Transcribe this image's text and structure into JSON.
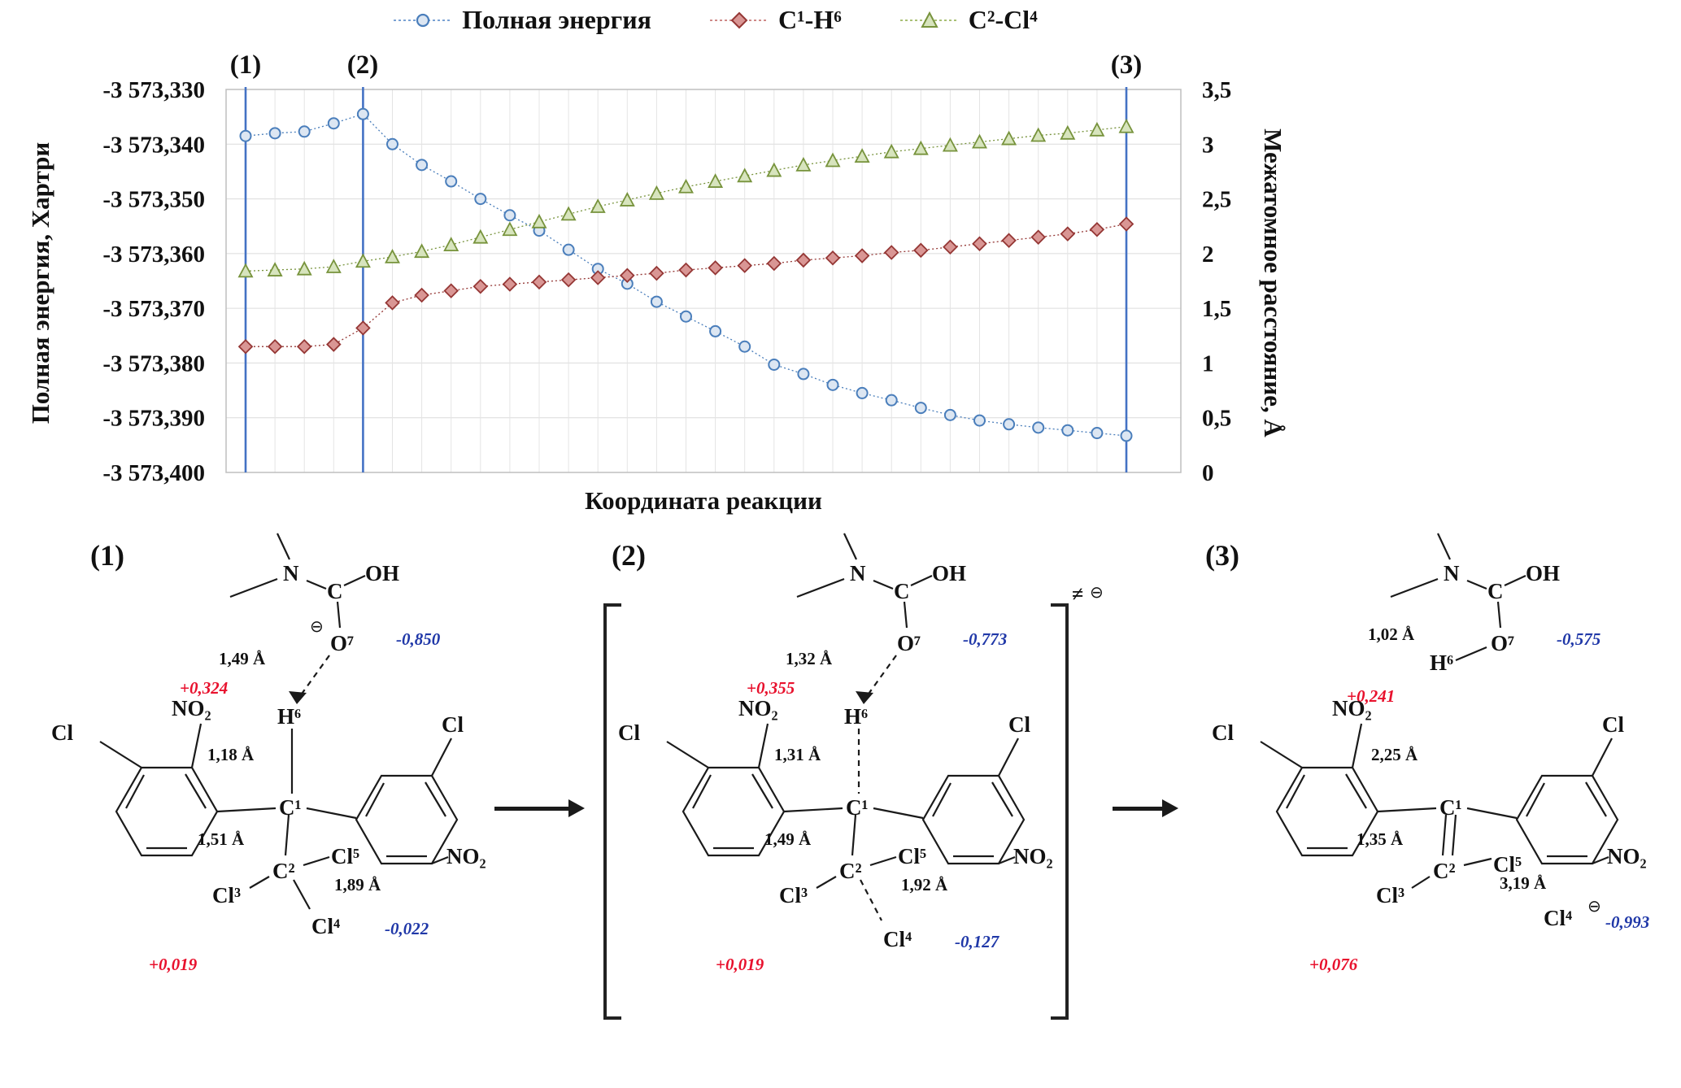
{
  "legend": {
    "items": [
      {
        "name": "total-energy",
        "label": "Полная энергия",
        "color": "#4a7ebb",
        "fill": "#dce6f2",
        "marker": "circle"
      },
      {
        "name": "c1-h6",
        "label": "C¹-H⁶",
        "color": "#953735",
        "fill": "#d99694",
        "marker": "diamond"
      },
      {
        "name": "c2-cl4",
        "label": "C²-Cl⁴",
        "color": "#77933c",
        "fill": "#d7e4bd",
        "marker": "triangle"
      }
    ]
  },
  "chart_data": {
    "type": "line",
    "title": "",
    "xlabel": "Координата реакции",
    "ylabel_left": "Полная энергия, Хартри",
    "ylabel_right": "Межатомное расстояние, Å",
    "n_points": 31,
    "grid": true,
    "legend_position": "top",
    "left_axis": {
      "min": -3573.4,
      "max": -3573.33,
      "tick_labels": [
        "-3 573,330",
        "-3 573,340",
        "-3 573,350",
        "-3 573,360",
        "-3 573,370",
        "-3 573,380",
        "-3 573,390",
        "-3 573,400"
      ]
    },
    "right_axis": {
      "min": 0,
      "max": 3.5,
      "tick_labels": [
        "3,5",
        "3",
        "2,5",
        "2",
        "1,5",
        "1",
        "0,5",
        "0"
      ]
    },
    "series": [
      {
        "name": "Полная энергия",
        "axis": "left",
        "marker": "circle",
        "color": "#4a7ebb",
        "fill": "#dce6f2",
        "values": [
          -3573.3385,
          -3573.338,
          -3573.3377,
          -3573.3362,
          -3573.3345,
          -3573.34,
          -3573.3438,
          -3573.3468,
          -3573.35,
          -3573.353,
          -3573.3558,
          -3573.3593,
          -3573.3628,
          -3573.3655,
          -3573.3688,
          -3573.3715,
          -3573.3742,
          -3573.377,
          -3573.3803,
          -3573.382,
          -3573.384,
          -3573.3855,
          -3573.3868,
          -3573.3882,
          -3573.3895,
          -3573.3905,
          -3573.3912,
          -3573.3918,
          -3573.3923,
          -3573.3928,
          -3573.3933
        ]
      },
      {
        "name": "C¹-H⁶",
        "axis": "right",
        "marker": "diamond",
        "color": "#953735",
        "fill": "#d99694",
        "values": [
          1.15,
          1.15,
          1.15,
          1.17,
          1.32,
          1.55,
          1.62,
          1.66,
          1.7,
          1.72,
          1.74,
          1.76,
          1.78,
          1.8,
          1.82,
          1.85,
          1.87,
          1.89,
          1.91,
          1.94,
          1.96,
          1.98,
          2.01,
          2.03,
          2.06,
          2.09,
          2.12,
          2.15,
          2.18,
          2.22,
          2.27
        ]
      },
      {
        "name": "C²-Cl⁴",
        "axis": "right",
        "marker": "triangle",
        "color": "#77933c",
        "fill": "#d7e4bd",
        "values": [
          1.84,
          1.85,
          1.86,
          1.88,
          1.93,
          1.97,
          2.02,
          2.08,
          2.15,
          2.22,
          2.29,
          2.36,
          2.43,
          2.49,
          2.55,
          2.61,
          2.66,
          2.71,
          2.76,
          2.81,
          2.85,
          2.89,
          2.93,
          2.96,
          2.99,
          3.02,
          3.05,
          3.08,
          3.1,
          3.13,
          3.16
        ]
      }
    ],
    "vlines": {
      "color": "#4472c4",
      "at_index": [
        0,
        4,
        30
      ],
      "labels": [
        "(1)",
        "(2)",
        "(3)"
      ]
    }
  },
  "structures": [
    {
      "label": "(1)",
      "n": "N",
      "c": "C",
      "oh": "OH",
      "o7": "O⁷",
      "h6": "H⁶",
      "c1": "C¹",
      "c2": "C²",
      "cl3": "Cl³",
      "cl4": "Cl⁴",
      "cl5": "Cl⁵",
      "no2_left": "NO₂",
      "cl_left": "Cl",
      "cl_right": "Cl",
      "no2_right": "NO₂",
      "o7_minus": "⊖",
      "o7_charge": "-0,850",
      "o7_h6_dist": "1,49 Å",
      "h6_charge": "+0,324",
      "c1_h6_dist": "1,18 Å",
      "c1_c2_dist": "1,51 Å",
      "c2_cl4_dist": "1,89 Å",
      "cl4_charge": "-0,022",
      "bottom_charge": "+0,019"
    },
    {
      "label": "(2)",
      "ts_mark": "≠",
      "ts_minus": "⊖",
      "n": "N",
      "c": "C",
      "oh": "OH",
      "o7": "O⁷",
      "h6": "H⁶",
      "c1": "C¹",
      "c2": "C²",
      "cl3": "Cl³",
      "cl4": "Cl⁴",
      "cl5": "Cl⁵",
      "no2_left": "NO₂",
      "cl_left": "Cl",
      "cl_right": "Cl",
      "no2_right": "NO₂",
      "o7_charge": "-0,773",
      "o7_h6_dist": "1,32 Å",
      "h6_charge": "+0,355",
      "c1_h6_dist": "1,31 Å",
      "c1_c2_dist": "1,49 Å",
      "c2_cl4_dist": "1,92 Å",
      "cl4_charge": "-0,127",
      "bottom_charge": "+0,019"
    },
    {
      "label": "(3)",
      "n": "N",
      "c": "C",
      "oh": "OH",
      "o7": "O⁷",
      "h6": "H⁶",
      "c1": "C¹",
      "c2": "C²",
      "cl3": "Cl³",
      "cl4": "Cl⁴",
      "cl5": "Cl⁵",
      "no2_left": "NO₂",
      "cl_left": "Cl",
      "cl_right": "Cl",
      "no2_right": "NO₂",
      "cl4_minus": "⊖",
      "o7_charge": "-0,575",
      "o7_h6_dist": "1,02 Å",
      "h6_charge": "+0,241",
      "c1_h6_dist": "2,25 Å",
      "c1_c2_dist": "1,35 Å",
      "c2_cl4_dist": "3,19 Å",
      "cl4_charge": "-0,993",
      "bottom_charge": "+0,076"
    }
  ]
}
